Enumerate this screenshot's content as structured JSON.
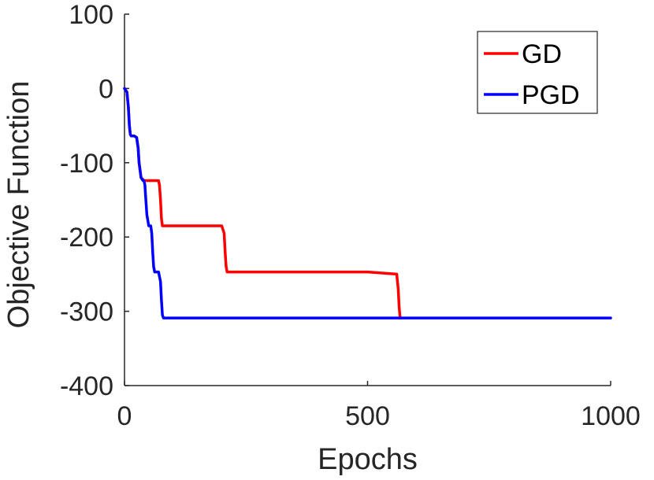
{
  "chart_data": {
    "type": "line",
    "xlabel": "Epochs",
    "ylabel": "Objective Function",
    "xlim": [
      0,
      1000
    ],
    "ylim": [
      -400,
      100
    ],
    "xticks": [
      0,
      500,
      1000
    ],
    "yticks": [
      100,
      0,
      -100,
      -200,
      -300,
      -400
    ],
    "grid": false,
    "legend_position": "top-right",
    "series": [
      {
        "name": "GD",
        "color": "#ff0000",
        "x": [
          0,
          5,
          8,
          10,
          12,
          14,
          16,
          20,
          25,
          28,
          30,
          34,
          40,
          45,
          50,
          60,
          70,
          72,
          74,
          76,
          78,
          80,
          100,
          150,
          200,
          205,
          207,
          209,
          211,
          215,
          300,
          400,
          500,
          560,
          563,
          565,
          567,
          570
        ],
        "y": [
          0,
          -5,
          -25,
          -50,
          -62,
          -64,
          -64,
          -64,
          -66,
          -80,
          -100,
          -120,
          -124,
          -124,
          -124,
          -124,
          -124,
          -130,
          -150,
          -175,
          -185,
          -185,
          -185,
          -185,
          -185,
          -195,
          -220,
          -240,
          -247,
          -247,
          -247,
          -247,
          -247,
          -250,
          -270,
          -295,
          -309,
          -309
        ]
      },
      {
        "name": "PGD",
        "color": "#0000ff",
        "x": [
          0,
          5,
          8,
          10,
          12,
          14,
          16,
          20,
          25,
          28,
          30,
          34,
          38,
          40,
          42,
          44,
          46,
          50,
          54,
          56,
          58,
          60,
          62,
          66,
          70,
          74,
          76,
          78,
          80,
          84,
          100,
          200,
          300,
          400,
          500,
          600,
          700,
          800,
          900,
          1000
        ],
        "y": [
          0,
          -5,
          -25,
          -50,
          -62,
          -64,
          -64,
          -64,
          -66,
          -80,
          -100,
          -120,
          -124,
          -124,
          -130,
          -150,
          -170,
          -185,
          -185,
          -195,
          -220,
          -240,
          -247,
          -247,
          -247,
          -260,
          -285,
          -305,
          -309,
          -309,
          -309,
          -309,
          -309,
          -309,
          -309,
          -309,
          -309,
          -309,
          -309,
          -309
        ]
      }
    ]
  }
}
